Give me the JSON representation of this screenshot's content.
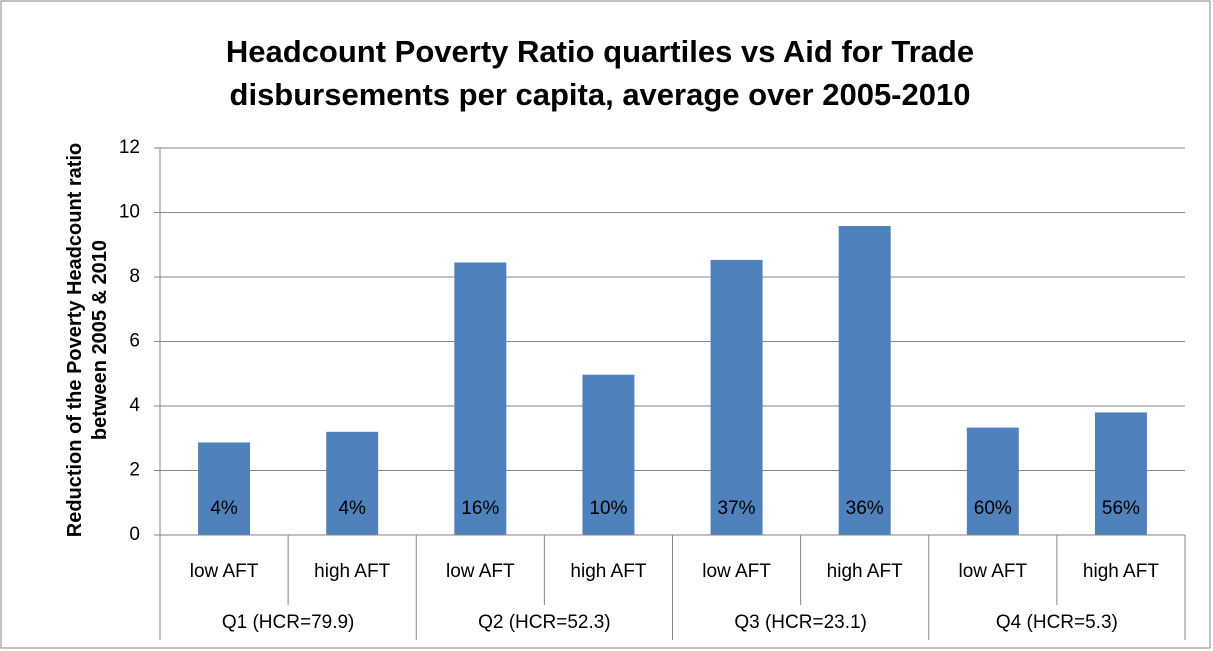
{
  "chart_data": {
    "type": "bar",
    "title": "Headcount Poverty Ratio quartiles vs Aid for Trade disbursements per capita, average over 2005-2010",
    "y_label": "Reduction of the Poverty Headcount ratio between 2005 & 2010",
    "categories": [
      "low AFT",
      "high AFT",
      "low AFT",
      "high AFT",
      "low AFT",
      "high AFT",
      "low AFT",
      "high AFT"
    ],
    "groups": [
      "Q1 (HCR=79.9)",
      "Q2 (HCR=52.3)",
      "Q3 (HCR=23.1)",
      "Q4 (HCR=5.3)"
    ],
    "values": [
      2.87,
      3.2,
      8.45,
      4.97,
      8.53,
      9.58,
      3.33,
      3.8
    ],
    "annotations": [
      "4%",
      "4%",
      "16%",
      "10%",
      "37%",
      "36%",
      "60%",
      "56%"
    ],
    "color": "#4f81bd",
    "ylim": [
      0,
      12
    ],
    "yticks": [
      0,
      2,
      4,
      6,
      8,
      10,
      12
    ],
    "grid": true
  }
}
